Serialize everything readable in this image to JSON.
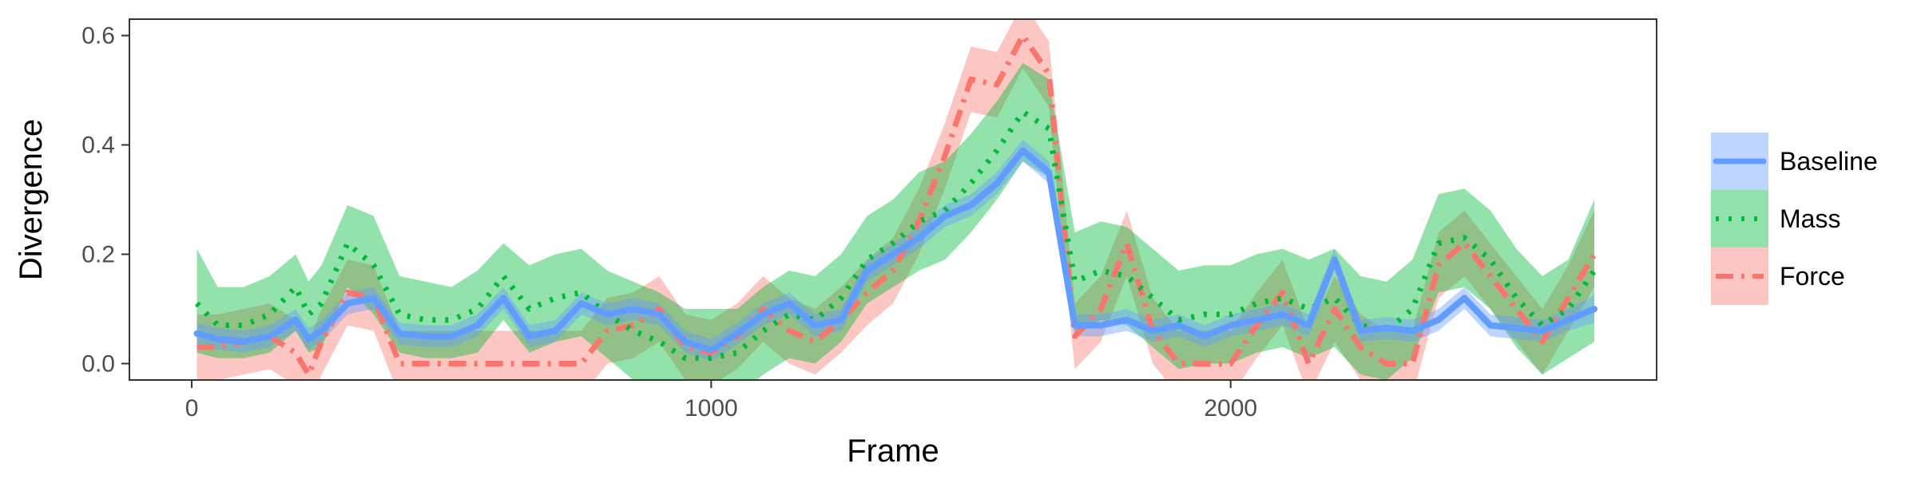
{
  "chart_data": {
    "type": "line",
    "xlabel": "Frame",
    "ylabel": "Divergence",
    "xlim": [
      -120,
      2820
    ],
    "ylim": [
      -0.03,
      0.63
    ],
    "x_ticks": [
      0,
      1000,
      2000
    ],
    "y_ticks": [
      0.0,
      0.2,
      0.4,
      0.6
    ],
    "x_tick_labels": [
      "0",
      "1000",
      "2000"
    ],
    "y_tick_labels": [
      "0.0",
      "0.2",
      "0.4",
      "0.6"
    ],
    "grid": false,
    "legend_position": "right",
    "x": [
      10,
      50,
      100,
      150,
      200,
      225,
      250,
      300,
      350,
      400,
      450,
      500,
      550,
      600,
      650,
      700,
      750,
      800,
      850,
      900,
      950,
      1000,
      1050,
      1100,
      1150,
      1200,
      1250,
      1300,
      1350,
      1400,
      1450,
      1500,
      1550,
      1600,
      1650,
      1700,
      1750,
      1800,
      1850,
      1900,
      1950,
      2000,
      2050,
      2100,
      2150,
      2200,
      2250,
      2300,
      2350,
      2400,
      2450,
      2500,
      2550,
      2600,
      2650,
      2700
    ],
    "series": [
      {
        "name": "Baseline",
        "style": "solid",
        "color": "#619cff",
        "band_color": "#619cff",
        "y": [
          0.055,
          0.045,
          0.04,
          0.05,
          0.08,
          0.045,
          0.06,
          0.11,
          0.12,
          0.055,
          0.05,
          0.05,
          0.07,
          0.12,
          0.05,
          0.06,
          0.11,
          0.09,
          0.1,
          0.09,
          0.04,
          0.025,
          0.055,
          0.09,
          0.11,
          0.07,
          0.08,
          0.17,
          0.2,
          0.23,
          0.27,
          0.29,
          0.33,
          0.39,
          0.35,
          0.07,
          0.07,
          0.08,
          0.06,
          0.07,
          0.05,
          0.07,
          0.08,
          0.09,
          0.07,
          0.19,
          0.06,
          0.065,
          0.06,
          0.08,
          0.12,
          0.07,
          0.065,
          0.06,
          0.08,
          0.1
        ],
        "lower": [
          0.035,
          0.025,
          0.02,
          0.03,
          0.06,
          0.025,
          0.04,
          0.09,
          0.1,
          0.035,
          0.03,
          0.03,
          0.05,
          0.1,
          0.03,
          0.04,
          0.09,
          0.07,
          0.08,
          0.07,
          0.02,
          0.005,
          0.035,
          0.07,
          0.09,
          0.05,
          0.06,
          0.15,
          0.18,
          0.21,
          0.25,
          0.27,
          0.31,
          0.37,
          0.33,
          0.05,
          0.05,
          0.06,
          0.04,
          0.05,
          0.03,
          0.05,
          0.06,
          0.07,
          0.05,
          0.17,
          0.04,
          0.045,
          0.04,
          0.06,
          0.1,
          0.05,
          0.045,
          0.04,
          0.06,
          0.075
        ],
        "upper": [
          0.075,
          0.065,
          0.06,
          0.07,
          0.1,
          0.065,
          0.08,
          0.13,
          0.14,
          0.075,
          0.07,
          0.07,
          0.09,
          0.14,
          0.07,
          0.08,
          0.13,
          0.11,
          0.12,
          0.11,
          0.06,
          0.045,
          0.075,
          0.11,
          0.13,
          0.09,
          0.1,
          0.19,
          0.22,
          0.25,
          0.29,
          0.31,
          0.35,
          0.41,
          0.37,
          0.09,
          0.09,
          0.1,
          0.08,
          0.09,
          0.07,
          0.09,
          0.1,
          0.11,
          0.09,
          0.21,
          0.08,
          0.085,
          0.08,
          0.1,
          0.14,
          0.09,
          0.085,
          0.08,
          0.1,
          0.125
        ]
      },
      {
        "name": "Mass",
        "style": "dotted",
        "color": "#00ba38",
        "band_color": "#00ba38",
        "y": [
          0.11,
          0.07,
          0.07,
          0.09,
          0.14,
          0.09,
          0.11,
          0.22,
          0.18,
          0.09,
          0.08,
          0.08,
          0.1,
          0.16,
          0.1,
          0.12,
          0.13,
          0.09,
          0.06,
          0.04,
          0.01,
          0.01,
          0.02,
          0.06,
          0.09,
          0.08,
          0.12,
          0.19,
          0.22,
          0.26,
          0.28,
          0.33,
          0.39,
          0.46,
          0.43,
          0.15,
          0.17,
          0.16,
          0.12,
          0.08,
          0.09,
          0.09,
          0.11,
          0.12,
          0.1,
          0.12,
          0.07,
          0.06,
          0.1,
          0.22,
          0.23,
          0.19,
          0.12,
          0.07,
          0.1,
          0.17
        ],
        "lower": [
          0.02,
          0.01,
          0.01,
          0.02,
          0.06,
          0.02,
          0.03,
          0.14,
          0.09,
          0.02,
          0.01,
          0.01,
          0.02,
          0.08,
          0.02,
          0.04,
          0.05,
          0.01,
          -0.03,
          -0.05,
          -0.08,
          -0.08,
          -0.06,
          -0.02,
          0.01,
          0.0,
          0.04,
          0.11,
          0.14,
          0.17,
          0.19,
          0.24,
          0.3,
          0.37,
          0.34,
          0.06,
          0.08,
          0.07,
          0.03,
          -0.01,
          0.0,
          0.0,
          0.02,
          0.03,
          0.01,
          0.03,
          -0.02,
          -0.03,
          0.01,
          0.13,
          0.14,
          0.1,
          0.03,
          -0.02,
          0.01,
          0.04
        ],
        "upper": [
          0.21,
          0.14,
          0.14,
          0.16,
          0.2,
          0.15,
          0.18,
          0.29,
          0.27,
          0.16,
          0.15,
          0.14,
          0.17,
          0.22,
          0.18,
          0.2,
          0.21,
          0.17,
          0.15,
          0.13,
          0.1,
          0.1,
          0.1,
          0.14,
          0.17,
          0.16,
          0.2,
          0.27,
          0.3,
          0.35,
          0.37,
          0.42,
          0.48,
          0.55,
          0.52,
          0.24,
          0.26,
          0.25,
          0.21,
          0.17,
          0.18,
          0.18,
          0.2,
          0.21,
          0.19,
          0.21,
          0.16,
          0.15,
          0.19,
          0.31,
          0.32,
          0.28,
          0.21,
          0.16,
          0.19,
          0.3
        ]
      },
      {
        "name": "Force",
        "style": "dashdot",
        "color": "#f8766d",
        "band_color": "#f8766d",
        "y": [
          0.03,
          0.03,
          0.04,
          0.05,
          0.02,
          -0.02,
          0.04,
          0.13,
          0.12,
          0.0,
          0.0,
          0.0,
          0.0,
          0.0,
          0.0,
          0.0,
          0.0,
          0.06,
          0.07,
          0.1,
          0.03,
          0.02,
          0.05,
          0.1,
          0.06,
          0.04,
          0.08,
          0.13,
          0.17,
          0.26,
          0.38,
          0.52,
          0.51,
          0.6,
          0.53,
          0.05,
          0.1,
          0.22,
          0.06,
          0.0,
          0.0,
          0.0,
          0.07,
          0.13,
          0.0,
          0.1,
          0.03,
          0.0,
          0.0,
          0.18,
          0.22,
          0.16,
          0.1,
          0.04,
          0.12,
          0.2
        ],
        "lower": [
          -0.03,
          -0.03,
          -0.02,
          -0.01,
          -0.04,
          -0.08,
          -0.02,
          0.07,
          0.06,
          -0.06,
          -0.06,
          -0.06,
          -0.06,
          -0.06,
          -0.06,
          -0.06,
          -0.06,
          0.0,
          0.01,
          0.04,
          -0.03,
          -0.04,
          -0.01,
          0.04,
          0.0,
          -0.02,
          0.02,
          0.07,
          0.11,
          0.2,
          0.32,
          0.46,
          0.45,
          0.54,
          0.47,
          -0.01,
          0.04,
          0.16,
          0.0,
          -0.06,
          -0.06,
          -0.06,
          0.01,
          0.07,
          -0.06,
          0.04,
          -0.03,
          -0.06,
          -0.06,
          0.12,
          0.16,
          0.1,
          0.04,
          -0.02,
          0.06,
          0.14
        ],
        "upper": [
          0.09,
          0.09,
          0.1,
          0.11,
          0.08,
          0.04,
          0.1,
          0.19,
          0.18,
          0.06,
          0.06,
          0.06,
          0.06,
          0.06,
          0.06,
          0.06,
          0.06,
          0.12,
          0.13,
          0.16,
          0.09,
          0.08,
          0.11,
          0.16,
          0.12,
          0.1,
          0.14,
          0.19,
          0.23,
          0.32,
          0.44,
          0.58,
          0.57,
          0.66,
          0.59,
          0.11,
          0.16,
          0.28,
          0.12,
          0.06,
          0.06,
          0.06,
          0.13,
          0.19,
          0.06,
          0.16,
          0.09,
          0.06,
          0.06,
          0.24,
          0.28,
          0.22,
          0.16,
          0.1,
          0.18,
          0.28
        ]
      }
    ]
  }
}
